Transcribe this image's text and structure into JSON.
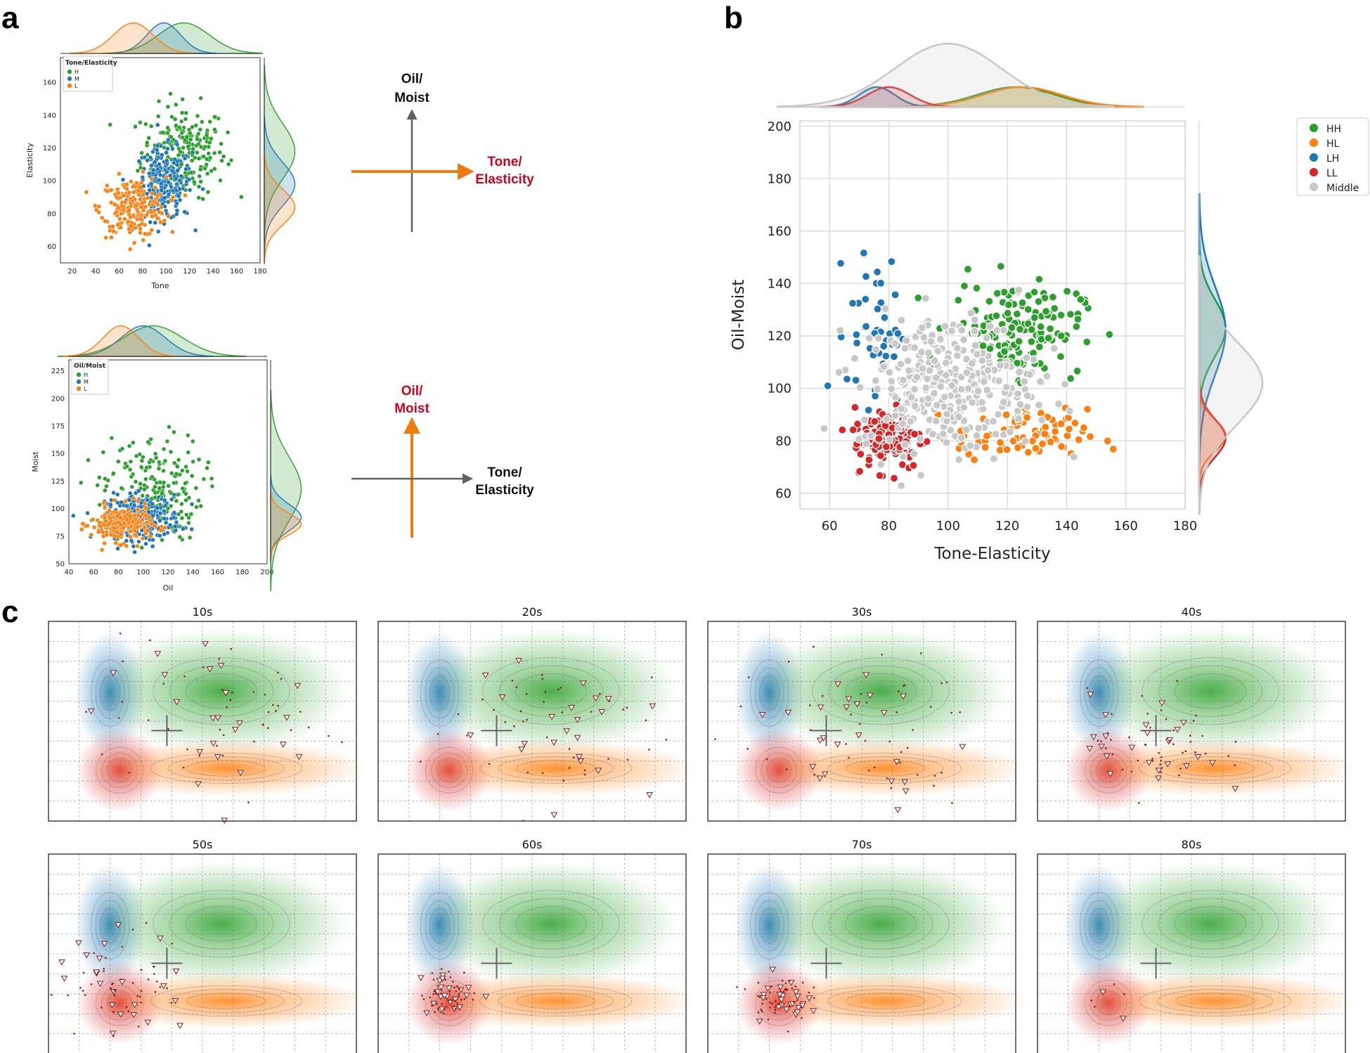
{
  "colors": {
    "H": "#2ca02c",
    "M": "#1f77b4",
    "L": "#ff7f0e",
    "HH": "#2ca02c",
    "HL": "#ff7f0e",
    "LH": "#1f77b4",
    "LL": "#d62728",
    "Middle": "#c8c8c8",
    "accent_red": "#d0021b",
    "arrow_orange": "#ee7d10",
    "arrow_gray": "#606060"
  },
  "panel_labels": {
    "a": "a",
    "b": "b",
    "c": "c"
  },
  "arrows": {
    "top": {
      "vertical_label_line1": "Oil/",
      "vertical_label_line2": "Moist",
      "horizontal_label_line1": "Tone/",
      "horizontal_label_line2": "Elasticity"
    },
    "bottom": {
      "vertical_label_line1": "Oil/",
      "vertical_label_line2": "Moist",
      "horizontal_label_line1": "Tone/",
      "horizontal_label_line2": "Elasticity"
    }
  },
  "chart_data": [
    {
      "id": "a-top",
      "type": "scatter",
      "title": "",
      "xlabel": "Tone",
      "ylabel": "Elasticity",
      "xlim": [
        10,
        180
      ],
      "ylim": [
        50,
        175
      ],
      "xticks": [
        20,
        40,
        60,
        80,
        100,
        120,
        140,
        160,
        180
      ],
      "yticks": [
        60,
        80,
        100,
        120,
        140,
        160
      ],
      "legend_title": "Tone/Elasticity",
      "legend_position": "top-left",
      "series": [
        {
          "name": "H",
          "center": [
            115,
            118
          ],
          "spread": [
            18,
            14
          ],
          "count": 220
        },
        {
          "name": "M",
          "center": [
            98,
            98
          ],
          "spread": [
            12,
            11
          ],
          "count": 230
        },
        {
          "name": "L",
          "center": [
            72,
            84
          ],
          "spread": [
            14,
            9
          ],
          "count": 220
        }
      ]
    },
    {
      "id": "a-bottom",
      "type": "scatter",
      "title": "",
      "xlabel": "Oil",
      "ylabel": "Moist",
      "xlim": [
        40,
        200
      ],
      "ylim": [
        50,
        235
      ],
      "xticks": [
        40,
        60,
        80,
        100,
        120,
        140,
        160,
        180,
        200
      ],
      "yticks": [
        50,
        75,
        100,
        125,
        150,
        175,
        200,
        225
      ],
      "legend_title": "Oil/Moist",
      "legend_position": "top-left",
      "series": [
        {
          "name": "H",
          "center": [
            108,
            118
          ],
          "spread": [
            20,
            24
          ],
          "count": 200
        },
        {
          "name": "M",
          "center": [
            100,
            92
          ],
          "spread": [
            15,
            10
          ],
          "count": 260
        },
        {
          "name": "L",
          "center": [
            82,
            86
          ],
          "spread": [
            12,
            8
          ],
          "count": 240
        }
      ]
    },
    {
      "id": "b",
      "type": "scatter",
      "title": "",
      "xlabel": "Tone-Elasticity",
      "ylabel": "Oil-Moist",
      "xlim": [
        50,
        180
      ],
      "ylim": [
        54,
        202
      ],
      "xticks": [
        60,
        80,
        100,
        120,
        140,
        160,
        180
      ],
      "yticks": [
        60,
        80,
        100,
        120,
        140,
        160,
        180,
        200
      ],
      "legend_position": "top-right",
      "legend": [
        "HH",
        "HL",
        "LH",
        "LL",
        "Middle"
      ],
      "series": [
        {
          "name": "HH",
          "center": [
            123,
            123
          ],
          "spread": [
            11,
            9
          ],
          "count": 150
        },
        {
          "name": "HL",
          "center": [
            125,
            82
          ],
          "spread": [
            11,
            5
          ],
          "count": 85
        },
        {
          "name": "LH",
          "center": [
            76,
            122
          ],
          "spread": [
            5,
            14
          ],
          "count": 45
        },
        {
          "name": "LL",
          "center": [
            80,
            81
          ],
          "spread": [
            6,
            6
          ],
          "count": 130
        },
        {
          "name": "Middle",
          "center": [
            100,
            102
          ],
          "spread": [
            15,
            13
          ],
          "count": 320
        }
      ]
    },
    {
      "id": "c",
      "type": "scatter",
      "title": "",
      "panels": [
        "10s",
        "20s",
        "30s",
        "40s",
        "50s",
        "60s",
        "70s",
        "80s"
      ],
      "drift_toward": [
        [
          120,
          110
        ],
        [
          120,
          105
        ],
        [
          112,
          100
        ],
        [
          100,
          95
        ],
        [
          82,
          92
        ],
        [
          80,
          86
        ],
        [
          80,
          84
        ],
        [
          80,
          82
        ]
      ],
      "contour_centers": {
        "LH": [
          76,
          122
        ],
        "HH": [
          123,
          123
        ],
        "LL": [
          80,
          81
        ],
        "HL": [
          125,
          82
        ]
      }
    }
  ]
}
